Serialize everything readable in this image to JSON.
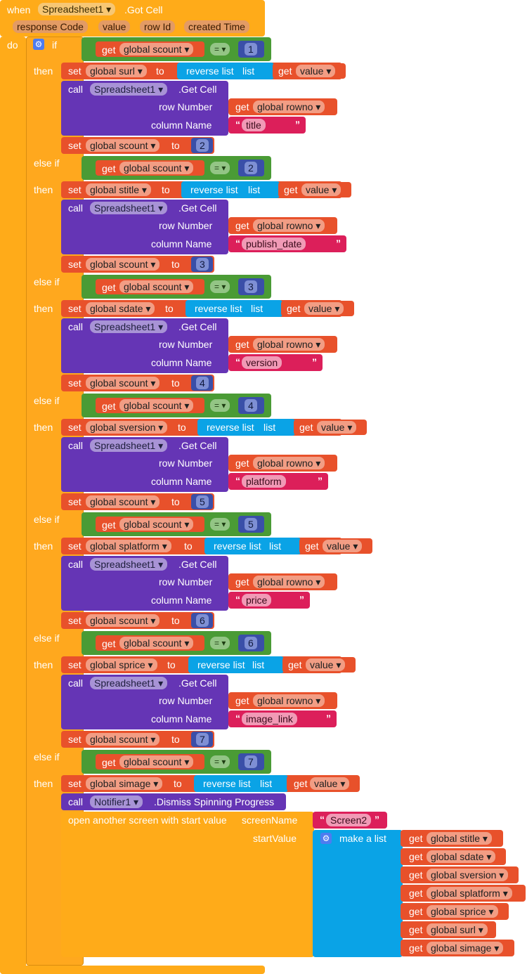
{
  "event": {
    "when": "when",
    "component": "Spreadsheet1",
    "event_name": ".Got Cell",
    "params": [
      "response Code",
      "value",
      "row Id",
      "created Time"
    ],
    "do": "do"
  },
  "if_block": {
    "if_label": "if",
    "else_if_label": "else if",
    "then_label": "then"
  },
  "keywords": {
    "get": "get",
    "set": "set",
    "to": "to",
    "call": "call",
    "reverse_list": "reverse list",
    "list": "list",
    "row_number": "row Number",
    "column_name": "column Name",
    "get_cell": ".Get Cell",
    "spreadsheet": "Spreadsheet1",
    "eq": "=",
    "open_quote": "“",
    "close_quote": "”",
    "global_scount": "global scount",
    "global_rowno": "global rowno",
    "value": "value"
  },
  "branches": [
    {
      "cond": "1",
      "set_var": "global surl",
      "column": "title",
      "next": "2"
    },
    {
      "cond": "2",
      "set_var": "global stitle",
      "column": "publish_date",
      "next": "3"
    },
    {
      "cond": "3",
      "set_var": "global sdate",
      "column": "version",
      "next": "4"
    },
    {
      "cond": "4",
      "set_var": "global sversion",
      "column": "platform",
      "next": "5"
    },
    {
      "cond": "5",
      "set_var": "global splatform",
      "column": "price",
      "next": "6"
    },
    {
      "cond": "6",
      "set_var": "global sprice",
      "column": "image_link",
      "next": "7"
    }
  ],
  "final_branch": {
    "cond": "7",
    "set_var": "global simage",
    "notifier": "Notifier1",
    "notifier_method": ".Dismiss Spinning Progress",
    "open_screen": "open another screen with start value",
    "screen_name_label": "screenName",
    "screen_name": "Screen2",
    "start_value_label": "startValue",
    "make_list": "make a list",
    "list_items": [
      "global stitle",
      "global sdate",
      "global sversion",
      "global splatform",
      "global sprice",
      "global surl",
      "global simage"
    ]
  }
}
